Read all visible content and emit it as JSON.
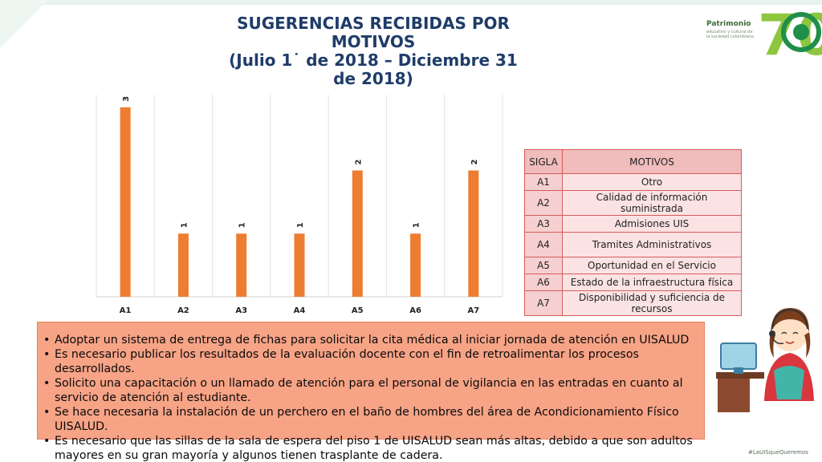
{
  "header": {
    "title_lines": [
      "SUGERENCIAS RECIBIDAS POR",
      "MOTIVOS",
      "(Julio 1˙ de 2018 – Diciembre 31",
      "de 2018)"
    ]
  },
  "logo": {
    "name": "Patrimonio",
    "tagline": "educativo y cultural de la sociedad colombiana",
    "number": "70"
  },
  "chart_data": {
    "type": "bar",
    "categories": [
      "A1",
      "A2",
      "A3",
      "A4",
      "A5",
      "A6",
      "A7"
    ],
    "values": [
      3,
      1,
      1,
      1,
      2,
      1,
      2
    ],
    "data_labels": [
      "3",
      "1",
      "1",
      "1",
      "2",
      "1",
      "2"
    ],
    "title": "",
    "xlabel": "",
    "ylabel": "",
    "ylim": [
      0,
      3.2
    ],
    "grid": "vertical",
    "bar_color": "#ed7d31"
  },
  "legend_table": {
    "headers": [
      "SIGLA",
      "MOTIVOS"
    ],
    "rows": [
      {
        "sigla": "A1",
        "motivo": "Otro"
      },
      {
        "sigla": "A2",
        "motivo": "Calidad de información suministrada"
      },
      {
        "sigla": "A3",
        "motivo": "Admisiones UIS"
      },
      {
        "sigla": "A4",
        "motivo": "Tramites Administrativos"
      },
      {
        "sigla": "A5",
        "motivo": "Oportunidad en el Servicio"
      },
      {
        "sigla": "A6",
        "motivo": "Estado de la infraestructura física"
      },
      {
        "sigla": "A7",
        "motivo": "Disponibilidad y suficiencia de recursos"
      }
    ]
  },
  "notes": [
    "Adoptar un sistema de entrega de fichas para solicitar la cita médica al iniciar jornada de atención en UISALUD",
    "Es necesario publicar los resultados de la evaluación docente con el fin de retroalimentar los procesos desarrollados.",
    "Solicito una capacitación o un llamado de atención para el personal de vigilancia en las entradas en cuanto al servicio de atención al estudiante.",
    "Se hace necesaria la instalación de un perchero en el baño de hombres del área de  Acondicionamiento Físico UISALUD.",
    "Es necesario que las sillas de la sala de espera del  piso 1 de UISALUD sean más altas, debido a que son adultos mayores en su gran mayoría y algunos tienen trasplante de cadera."
  ],
  "footer": {
    "hashtag": "#LaUISqueQueremos"
  }
}
